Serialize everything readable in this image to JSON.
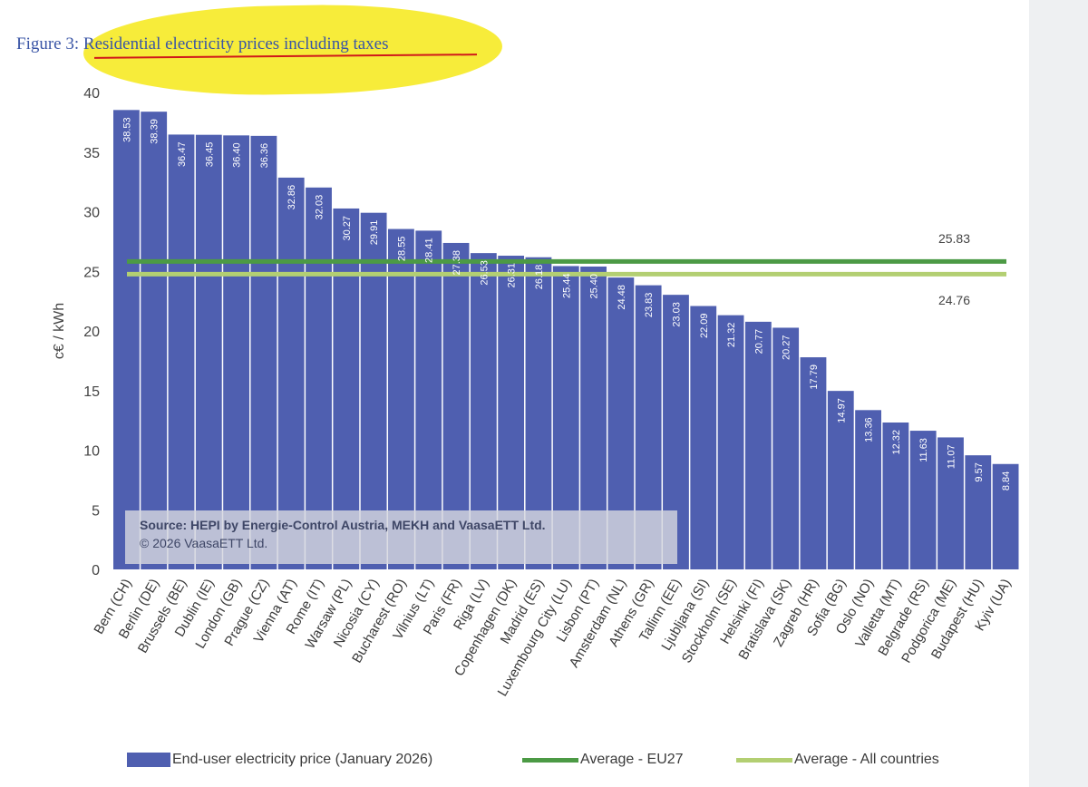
{
  "figure": {
    "label": "Figure 3:",
    "title": "Residential electricity prices including taxes"
  },
  "source": {
    "line1": "Source: HEPI by Energie-Control Austria, MEKH and VaasaETT Ltd.",
    "line2": "© 2026 VaasaETT Ltd."
  },
  "colors": {
    "bar": "#4f5fb0",
    "eu27_line": "#4c9a45",
    "all_line": "#b3cf72",
    "highlight": "#f7ec3a"
  },
  "chart_data": {
    "type": "bar",
    "title": "Residential electricity prices including taxes",
    "xlabel": "",
    "ylabel": "c€ / kWh",
    "ylim": [
      0,
      40
    ],
    "yticks": [
      0,
      5,
      10,
      15,
      20,
      25,
      30,
      35,
      40
    ],
    "grid": false,
    "categories": [
      "Bern (CH)",
      "Berlin (DE)",
      "Brussels (BE)",
      "Dublin (IE)",
      "London (GB)",
      "Prague (CZ)",
      "Vienna (AT)",
      "Rome (IT)",
      "Warsaw (PL)",
      "Nicosia (CY)",
      "Bucharest (RO)",
      "Vilnius (LT)",
      "Paris (FR)",
      "Riga (LV)",
      "Copenhagen (DK)",
      "Madrid (ES)",
      "Luxembourg City (LU)",
      "Lisbon (PT)",
      "Amsterdam (NL)",
      "Athens (GR)",
      "Tallinn (EE)",
      "Ljubljana (SI)",
      "Stockholm (SE)",
      "Helsinki (FI)",
      "Bratislava (SK)",
      "Zagreb (HR)",
      "Sofia (BG)",
      "Oslo (NO)",
      "Valletta (MT)",
      "Belgrade (RS)",
      "Podgorica (ME)",
      "Budapest (HU)",
      "Kyiv (UA)"
    ],
    "value_labels": [
      "38.53",
      "38.39",
      "36.47",
      "36.45",
      "36.40",
      "36.36",
      "32.86",
      "32.03",
      "30.27",
      "29.91",
      "28.55",
      "28.41",
      "27.38",
      "26.53",
      "26.31",
      "26.18",
      "25.44",
      "25.40",
      "24.48",
      "23.83",
      "23.03",
      "22.09",
      "21.32",
      "20.77",
      "20.27",
      "17.79",
      "14.97",
      "13.36",
      "12.32",
      "11.63",
      "11.07",
      "9.57",
      "8.84"
    ],
    "series": [
      {
        "name": "End-user electricity price (January 2026)",
        "type": "bar",
        "values": [
          38.53,
          38.39,
          36.47,
          36.45,
          36.4,
          36.36,
          32.86,
          32.03,
          30.27,
          29.91,
          28.55,
          28.41,
          27.38,
          26.53,
          26.31,
          26.18,
          25.44,
          25.4,
          24.48,
          23.83,
          23.03,
          22.09,
          21.32,
          20.77,
          20.27,
          17.79,
          14.97,
          13.36,
          12.32,
          11.63,
          11.07,
          9.57,
          8.84
        ]
      },
      {
        "name": "Average - EU27",
        "type": "hline",
        "value": 25.83,
        "label": "25.83"
      },
      {
        "name": "Average - All countries",
        "type": "hline",
        "value": 24.76,
        "label": "24.76"
      }
    ],
    "legend_position": "bottom"
  }
}
